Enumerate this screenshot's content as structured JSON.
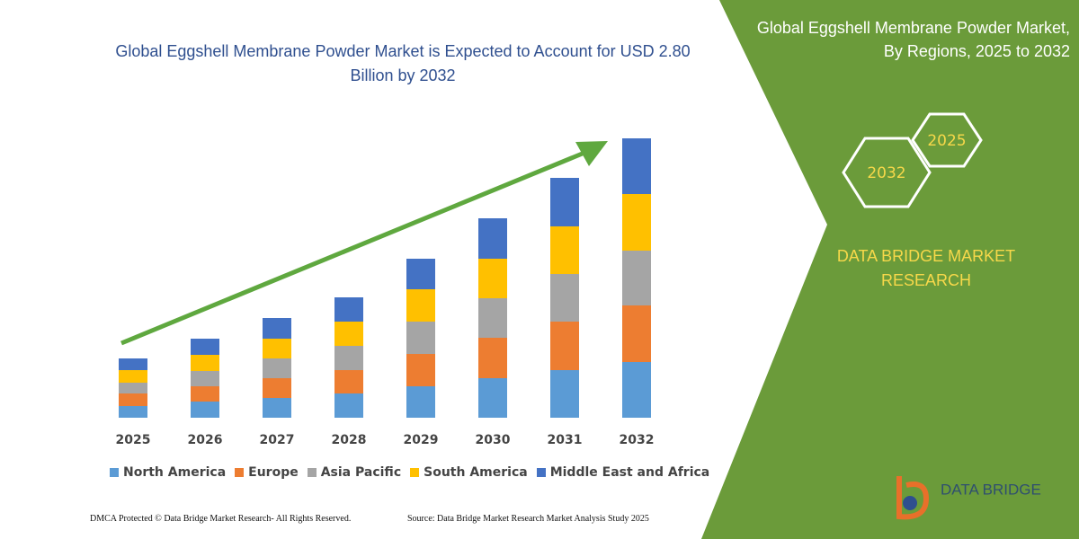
{
  "chart_data": {
    "type": "stacked_bar",
    "title": "Global Eggshell Membrane Powder Market is Expected to Account for USD 2.80 Billion by 2032",
    "categories": [
      "2025",
      "2026",
      "2027",
      "2028",
      "2029",
      "2030",
      "2031",
      "2032"
    ],
    "series": [
      {
        "name": "North America",
        "color": "#5b9bd5",
        "values": [
          13,
          18,
          22,
          27,
          35,
          44,
          53,
          62
        ]
      },
      {
        "name": "Europe",
        "color": "#ed7d31",
        "values": [
          14,
          17,
          22,
          26,
          36,
          45,
          54,
          63
        ]
      },
      {
        "name": "Asia Pacific",
        "color": "#a5a5a5",
        "values": [
          12,
          17,
          22,
          27,
          36,
          44,
          53,
          61
        ]
      },
      {
        "name": "South America",
        "color": "#ffc000",
        "values": [
          14,
          18,
          22,
          27,
          36,
          44,
          53,
          63
        ]
      },
      {
        "name": "Middle East and Africa",
        "color": "#4472c4",
        "values": [
          13,
          18,
          23,
          27,
          34,
          45,
          54,
          62
        ]
      }
    ],
    "ylim": [
      0,
      320
    ],
    "grid": false,
    "legend": "bottom"
  },
  "panel": {
    "title": "Global Eggshell Membrane Powder Market, By Regions, 2025 to 2032",
    "hexagons": [
      "2025",
      "2032"
    ],
    "brand": "DATA BRIDGE MARKET RESEARCH",
    "logo": "DATA BRIDGE"
  },
  "footer": {
    "left": "DMCA Protected © Data Bridge Market Research-  All Rights Reserved.",
    "right": "Source: Data Bridge Market Research  Market Analysis Study 2025"
  }
}
